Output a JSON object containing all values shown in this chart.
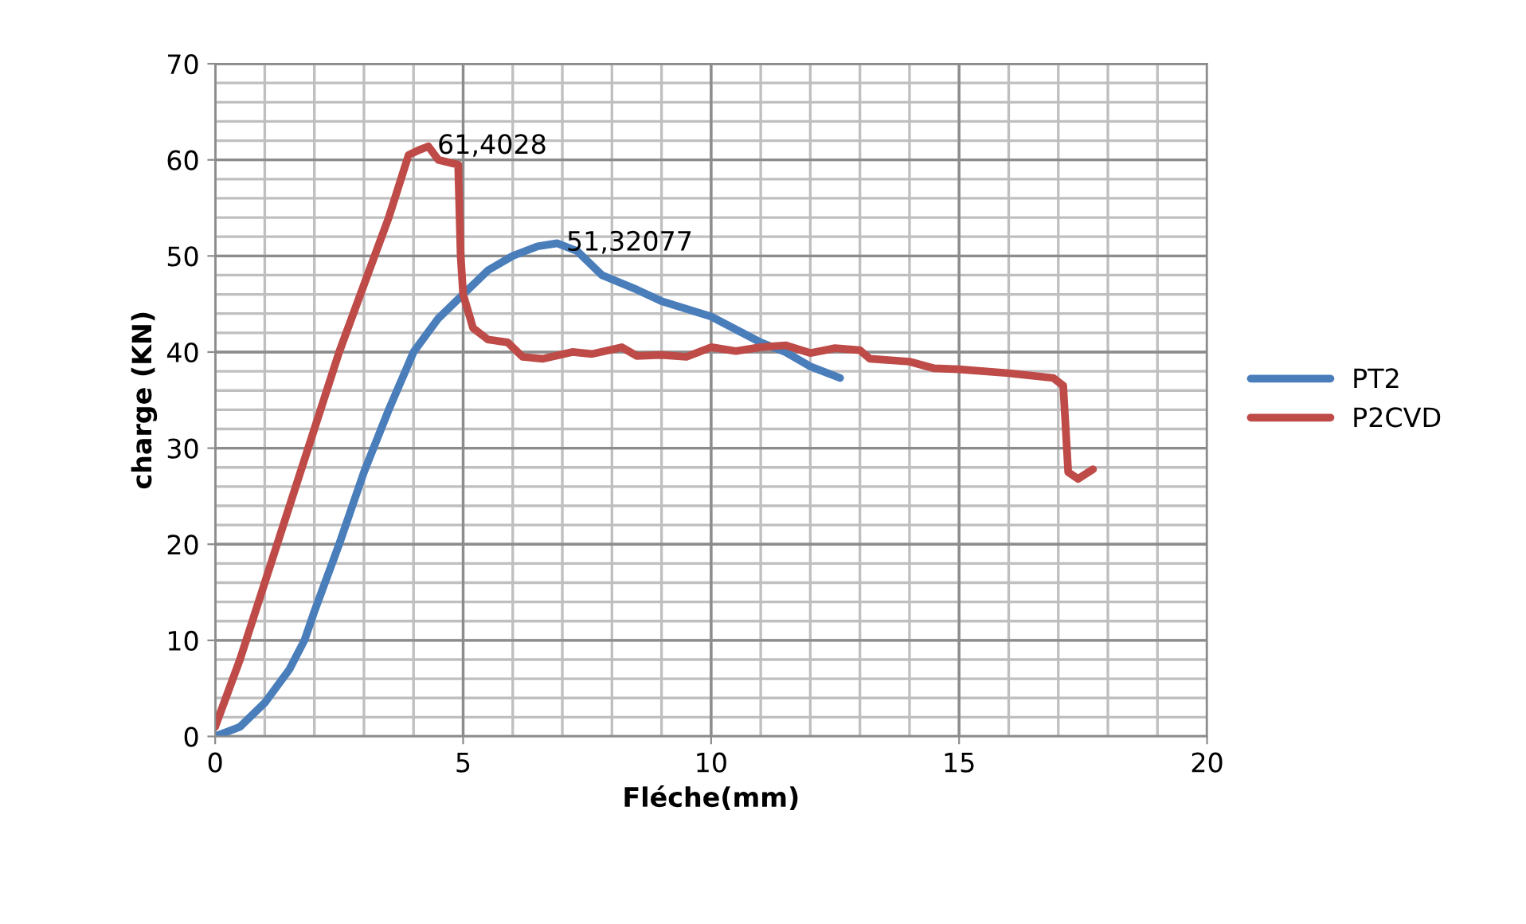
{
  "chart_data": {
    "type": "line",
    "xlabel": "Fléche(mm)",
    "ylabel": "charge (KN)",
    "xlim": [
      0,
      20
    ],
    "xticks": [
      0,
      5,
      10,
      15,
      20
    ],
    "ylim": [
      0,
      70
    ],
    "yticks": [
      0,
      10,
      20,
      30,
      40,
      50,
      60,
      70
    ],
    "grid": true,
    "legend": "right",
    "marker": "none",
    "line_style": "solid",
    "series": [
      {
        "name": "PT2",
        "color": "#4a7ebb",
        "x": [
          0,
          0.5,
          1,
          1.5,
          1.8,
          2,
          2.5,
          3,
          3.5,
          4,
          4.5,
          5,
          5.5,
          6,
          6.5,
          6.9,
          7.3,
          7.8,
          8.5,
          9,
          10,
          11,
          11.5,
          12,
          12.6
        ],
        "values": [
          0,
          1,
          3.5,
          7,
          10,
          13,
          20,
          27.5,
          34,
          40,
          43.5,
          46,
          48.5,
          50,
          51,
          51.32,
          50.5,
          48,
          46.5,
          45.3,
          43.7,
          41,
          40,
          38.5,
          37.3
        ]
      },
      {
        "name": "P2CVD",
        "color": "#be4b48",
        "x": [
          0,
          0.5,
          1,
          1.5,
          2,
          2.5,
          3,
          3.5,
          3.9,
          4.1,
          4.3,
          4.5,
          4.9,
          4.95,
          5,
          5.2,
          5.5,
          5.9,
          6.2,
          6.6,
          7.2,
          7.6,
          8.2,
          8.5,
          9,
          9.5,
          10,
          10.5,
          11,
          11.5,
          12,
          12.5,
          13,
          13.2,
          14,
          14.5,
          15,
          16,
          16.9,
          17.1,
          17.2,
          17.4,
          17.7
        ],
        "values": [
          1,
          8,
          16,
          24,
          32,
          40,
          47,
          54,
          60.5,
          61,
          61.4,
          60,
          59.5,
          50,
          46,
          42.5,
          41.3,
          41,
          39.5,
          39.3,
          40,
          39.8,
          40.5,
          39.6,
          39.7,
          39.5,
          40.5,
          40.1,
          40.5,
          40.7,
          39.9,
          40.4,
          40.2,
          39.3,
          39,
          38.3,
          38.2,
          37.8,
          37.3,
          36.5,
          27.5,
          26.8,
          27.8
        ]
      }
    ],
    "annotations": [
      {
        "text": "61,4028",
        "x": 4.3,
        "y": 61.4
      },
      {
        "text": "51,32077",
        "x": 6.9,
        "y": 51.32
      }
    ]
  }
}
